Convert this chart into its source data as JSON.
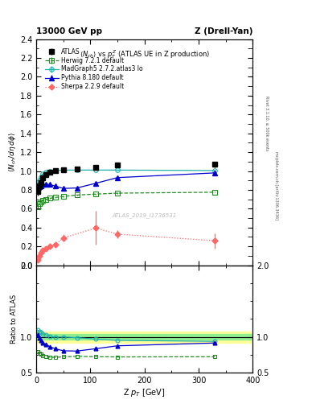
{
  "title_left": "13000 GeV pp",
  "title_right": "Z (Drell-Yan)",
  "plot_title": "$\\langle N_{ch}\\rangle$ vs $p_T^Z$ (ATLAS UE in Z production)",
  "xlabel": "Z p$_T$ [GeV]",
  "ylabel_main": "$\\langle N_{ch}/d\\eta\\, d\\phi\\rangle$",
  "ylabel_ratio": "Ratio to ATLAS",
  "watermark": "ATLAS_2019_I1736531",
  "right_label_top": "Rivet 3.1.10, ≥ 500k events",
  "right_label_bottom": "mcplots.cern.ch [arXiv:1306.3436]",
  "atlas_x": [
    2,
    5,
    8,
    12,
    18,
    25,
    35,
    50,
    75,
    110,
    150,
    330
  ],
  "atlas_y": [
    0.78,
    0.84,
    0.88,
    0.93,
    0.96,
    0.99,
    1.005,
    1.01,
    1.02,
    1.04,
    1.06,
    1.07
  ],
  "atlas_yerr": [
    0.04,
    0.03,
    0.025,
    0.02,
    0.02,
    0.015,
    0.01,
    0.01,
    0.015,
    0.015,
    0.02,
    0.03
  ],
  "herwig_x": [
    2,
    5,
    8,
    12,
    18,
    25,
    35,
    50,
    75,
    110,
    150,
    330
  ],
  "herwig_y": [
    0.62,
    0.65,
    0.67,
    0.69,
    0.7,
    0.71,
    0.72,
    0.73,
    0.745,
    0.755,
    0.765,
    0.775
  ],
  "herwig_yerr": [
    0.005,
    0.005,
    0.005,
    0.005,
    0.005,
    0.005,
    0.005,
    0.005,
    0.005,
    0.005,
    0.005,
    0.005
  ],
  "madgraph_x": [
    2,
    5,
    8,
    12,
    18,
    25,
    35,
    50,
    75,
    110,
    150,
    330
  ],
  "madgraph_y": [
    0.855,
    0.9,
    0.94,
    0.97,
    0.99,
    1.0,
    1.005,
    1.01,
    1.01,
    1.01,
    1.01,
    1.005
  ],
  "madgraph_yerr": [
    0.005,
    0.005,
    0.005,
    0.005,
    0.005,
    0.005,
    0.005,
    0.005,
    0.005,
    0.005,
    0.005,
    0.005
  ],
  "pythia_x": [
    2,
    5,
    8,
    12,
    18,
    25,
    35,
    50,
    75,
    110,
    150,
    330
  ],
  "pythia_y": [
    0.8,
    0.83,
    0.84,
    0.855,
    0.86,
    0.855,
    0.84,
    0.815,
    0.82,
    0.87,
    0.93,
    0.98
  ],
  "pythia_yerr": [
    0.02,
    0.015,
    0.012,
    0.012,
    0.012,
    0.012,
    0.012,
    0.012,
    0.012,
    0.012,
    0.015,
    0.025
  ],
  "sherpa_x": [
    2,
    5,
    8,
    12,
    18,
    25,
    35,
    50,
    110,
    150,
    330
  ],
  "sherpa_y": [
    0.055,
    0.1,
    0.135,
    0.155,
    0.18,
    0.205,
    0.22,
    0.29,
    0.395,
    0.33,
    0.26
  ],
  "sherpa_yerr": [
    0.008,
    0.012,
    0.012,
    0.015,
    0.015,
    0.015,
    0.02,
    0.04,
    0.18,
    0.04,
    0.08
  ],
  "herwig_ratio_x": [
    2,
    5,
    8,
    12,
    18,
    25,
    35,
    50,
    75,
    110,
    150,
    330
  ],
  "herwig_ratio_y": [
    0.795,
    0.774,
    0.761,
    0.742,
    0.729,
    0.717,
    0.716,
    0.723,
    0.73,
    0.726,
    0.722,
    0.725
  ],
  "madgraph_ratio_x": [
    2,
    5,
    8,
    12,
    18,
    25,
    35,
    50,
    75,
    110,
    150,
    330
  ],
  "madgraph_ratio_y": [
    1.096,
    1.071,
    1.068,
    1.043,
    1.031,
    1.01,
    0.999,
    1.0,
    0.99,
    0.971,
    0.953,
    0.939
  ],
  "pythia_ratio_x": [
    2,
    5,
    8,
    12,
    18,
    25,
    35,
    50,
    75,
    110,
    150,
    330
  ],
  "pythia_ratio_y": [
    1.026,
    0.988,
    0.955,
    0.919,
    0.896,
    0.864,
    0.836,
    0.807,
    0.804,
    0.837,
    0.877,
    0.916
  ],
  "pythia_ratio_yerr": [
    0.025,
    0.018,
    0.014,
    0.013,
    0.013,
    0.012,
    0.012,
    0.012,
    0.012,
    0.012,
    0.015,
    0.023
  ],
  "colors": {
    "atlas": "#000000",
    "herwig": "#228B22",
    "madgraph": "#20B2AA",
    "pythia": "#0000CD",
    "sherpa": "#FF6666"
  },
  "main_ylim": [
    0,
    2.4
  ],
  "ratio_ylim": [
    0.5,
    2.0
  ],
  "xlim": [
    0,
    400
  ]
}
